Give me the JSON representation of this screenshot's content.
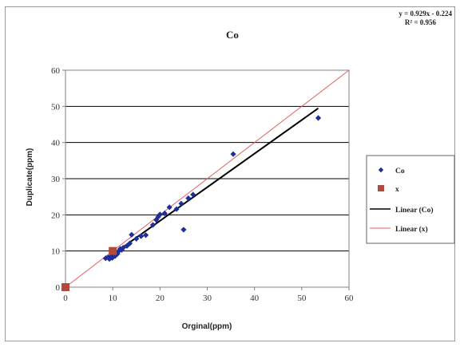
{
  "chart_data": {
    "type": "scatter",
    "title": "Co",
    "xlabel": "Orginal(ppm)",
    "ylabel": "Duplicate(ppm)",
    "xlim": [
      0,
      60
    ],
    "ylim": [
      0,
      60
    ],
    "x_ticks": [
      "0",
      "10",
      "20",
      "30",
      "40",
      "50",
      "60"
    ],
    "y_ticks": [
      "0",
      "10",
      "20",
      "30",
      "40",
      "50",
      "60"
    ],
    "grid": "horizontal",
    "legend_position": "right",
    "trendline_equation": {
      "line1": "y = 0.929x - 0.224",
      "line2": "R² = 0.956"
    },
    "series": [
      {
        "name": "Co",
        "marker": "diamond",
        "color": "#1f2f9a",
        "points": [
          [
            8.5,
            8.0
          ],
          [
            9.0,
            8.2
          ],
          [
            9.3,
            7.8
          ],
          [
            9.6,
            8.6
          ],
          [
            9.9,
            8.1
          ],
          [
            10.2,
            9.0
          ],
          [
            10.5,
            8.6
          ],
          [
            10.8,
            9.6
          ],
          [
            11.0,
            9.2
          ],
          [
            11.3,
            10.0
          ],
          [
            11.6,
            10.6
          ],
          [
            11.9,
            10.3
          ],
          [
            12.2,
            10.9
          ],
          [
            13.0,
            11.4
          ],
          [
            13.6,
            12.1
          ],
          [
            14.0,
            14.5
          ],
          [
            15.0,
            13.4
          ],
          [
            16.0,
            14.1
          ],
          [
            17.0,
            14.4
          ],
          [
            18.5,
            17.2
          ],
          [
            19.2,
            18.6
          ],
          [
            19.6,
            19.4
          ],
          [
            20.0,
            20.1
          ],
          [
            21.0,
            20.4
          ],
          [
            22.0,
            22.1
          ],
          [
            23.5,
            21.6
          ],
          [
            24.5,
            23.1
          ],
          [
            25.0,
            15.9
          ],
          [
            26.0,
            24.6
          ],
          [
            27.0,
            25.6
          ],
          [
            35.5,
            36.8
          ],
          [
            53.5,
            46.8
          ]
        ]
      },
      {
        "name": "x",
        "marker": "square",
        "color": "#b24a3c",
        "points": [
          [
            0,
            0
          ],
          [
            10,
            10
          ]
        ]
      },
      {
        "name": "Linear (Co)",
        "type": "trendline",
        "color": "#000000",
        "slope": 0.929,
        "intercept": -0.224,
        "x_range": [
          9.5,
          53.5
        ]
      },
      {
        "name": "Linear (x)",
        "type": "trendline",
        "color": "#e06060",
        "slope": 1,
        "intercept": 0,
        "x_range": [
          0,
          60
        ]
      }
    ]
  }
}
